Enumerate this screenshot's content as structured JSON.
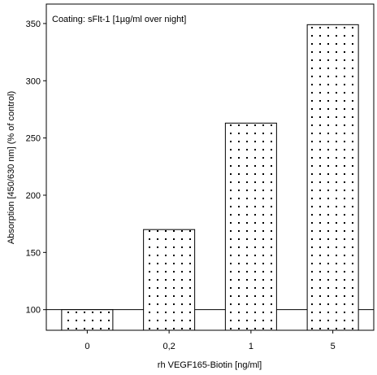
{
  "chart_data": {
    "type": "bar",
    "annotation": "Coating: sFlt-1 [1µg/ml over night]",
    "categories": [
      "0",
      "0,2",
      "1",
      "5"
    ],
    "values": [
      100,
      170,
      263,
      349
    ],
    "baseline": 100,
    "xlabel": "rh VEGF165-Biotin [ng/ml]",
    "ylabel": "Absorption [450/630 nm] (% of control)",
    "yticks": [
      "100",
      "150",
      "200",
      "250",
      "300",
      "350"
    ],
    "ylim": [
      82,
      367
    ],
    "bar_fill": "dotted",
    "colors": {
      "bar_stroke": "#000000",
      "bar_fill": "#ffffff",
      "dots": "#000000"
    }
  }
}
